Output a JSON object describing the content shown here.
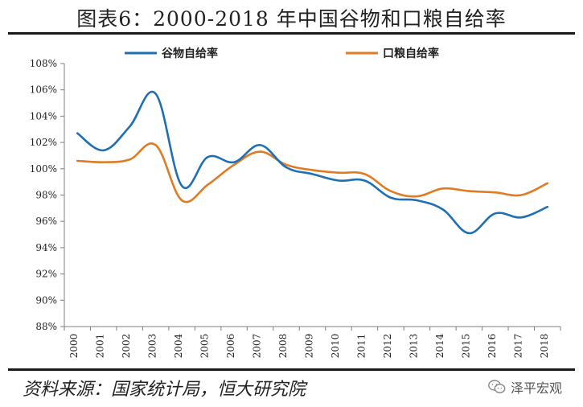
{
  "header": {
    "title": "图表6：2000-2018 年中国谷物和口粮自给率"
  },
  "footer": {
    "source": "资料来源：国家统计局，恒大研究院",
    "brand": "泽平宏观"
  },
  "colors": {
    "series1": "#1f6fb5",
    "series2": "#e07b24",
    "axis": "#7f7f7f"
  },
  "chart_data": {
    "type": "line",
    "title": "图表6：2000-2018 年中国谷物和口粮自给率",
    "xlabel": "",
    "ylabel": "",
    "x": [
      "2000",
      "2001",
      "2002",
      "2003",
      "2004",
      "2005",
      "2006",
      "2007",
      "2008",
      "2009",
      "2010",
      "2011",
      "2012",
      "2013",
      "2014",
      "2015",
      "2016",
      "2017",
      "2018"
    ],
    "y_ticks": [
      "88%",
      "90%",
      "92%",
      "94%",
      "96%",
      "98%",
      "100%",
      "102%",
      "104%",
      "106%",
      "108%"
    ],
    "ylim": [
      88,
      108
    ],
    "legend_position": "top",
    "grid": false,
    "series": [
      {
        "name": "谷物自给率",
        "values": [
          102.7,
          101.4,
          103.2,
          105.7,
          98.7,
          100.9,
          100.5,
          101.8,
          100.1,
          99.6,
          99.1,
          99.1,
          97.8,
          97.6,
          96.9,
          95.1,
          96.6,
          96.3,
          97.1
        ]
      },
      {
        "name": "口粮自给率",
        "values": [
          100.6,
          100.5,
          100.7,
          101.8,
          97.6,
          98.8,
          100.3,
          101.3,
          100.3,
          99.9,
          99.7,
          99.6,
          98.3,
          97.9,
          98.5,
          98.3,
          98.2,
          98.0,
          98.9
        ]
      }
    ]
  }
}
